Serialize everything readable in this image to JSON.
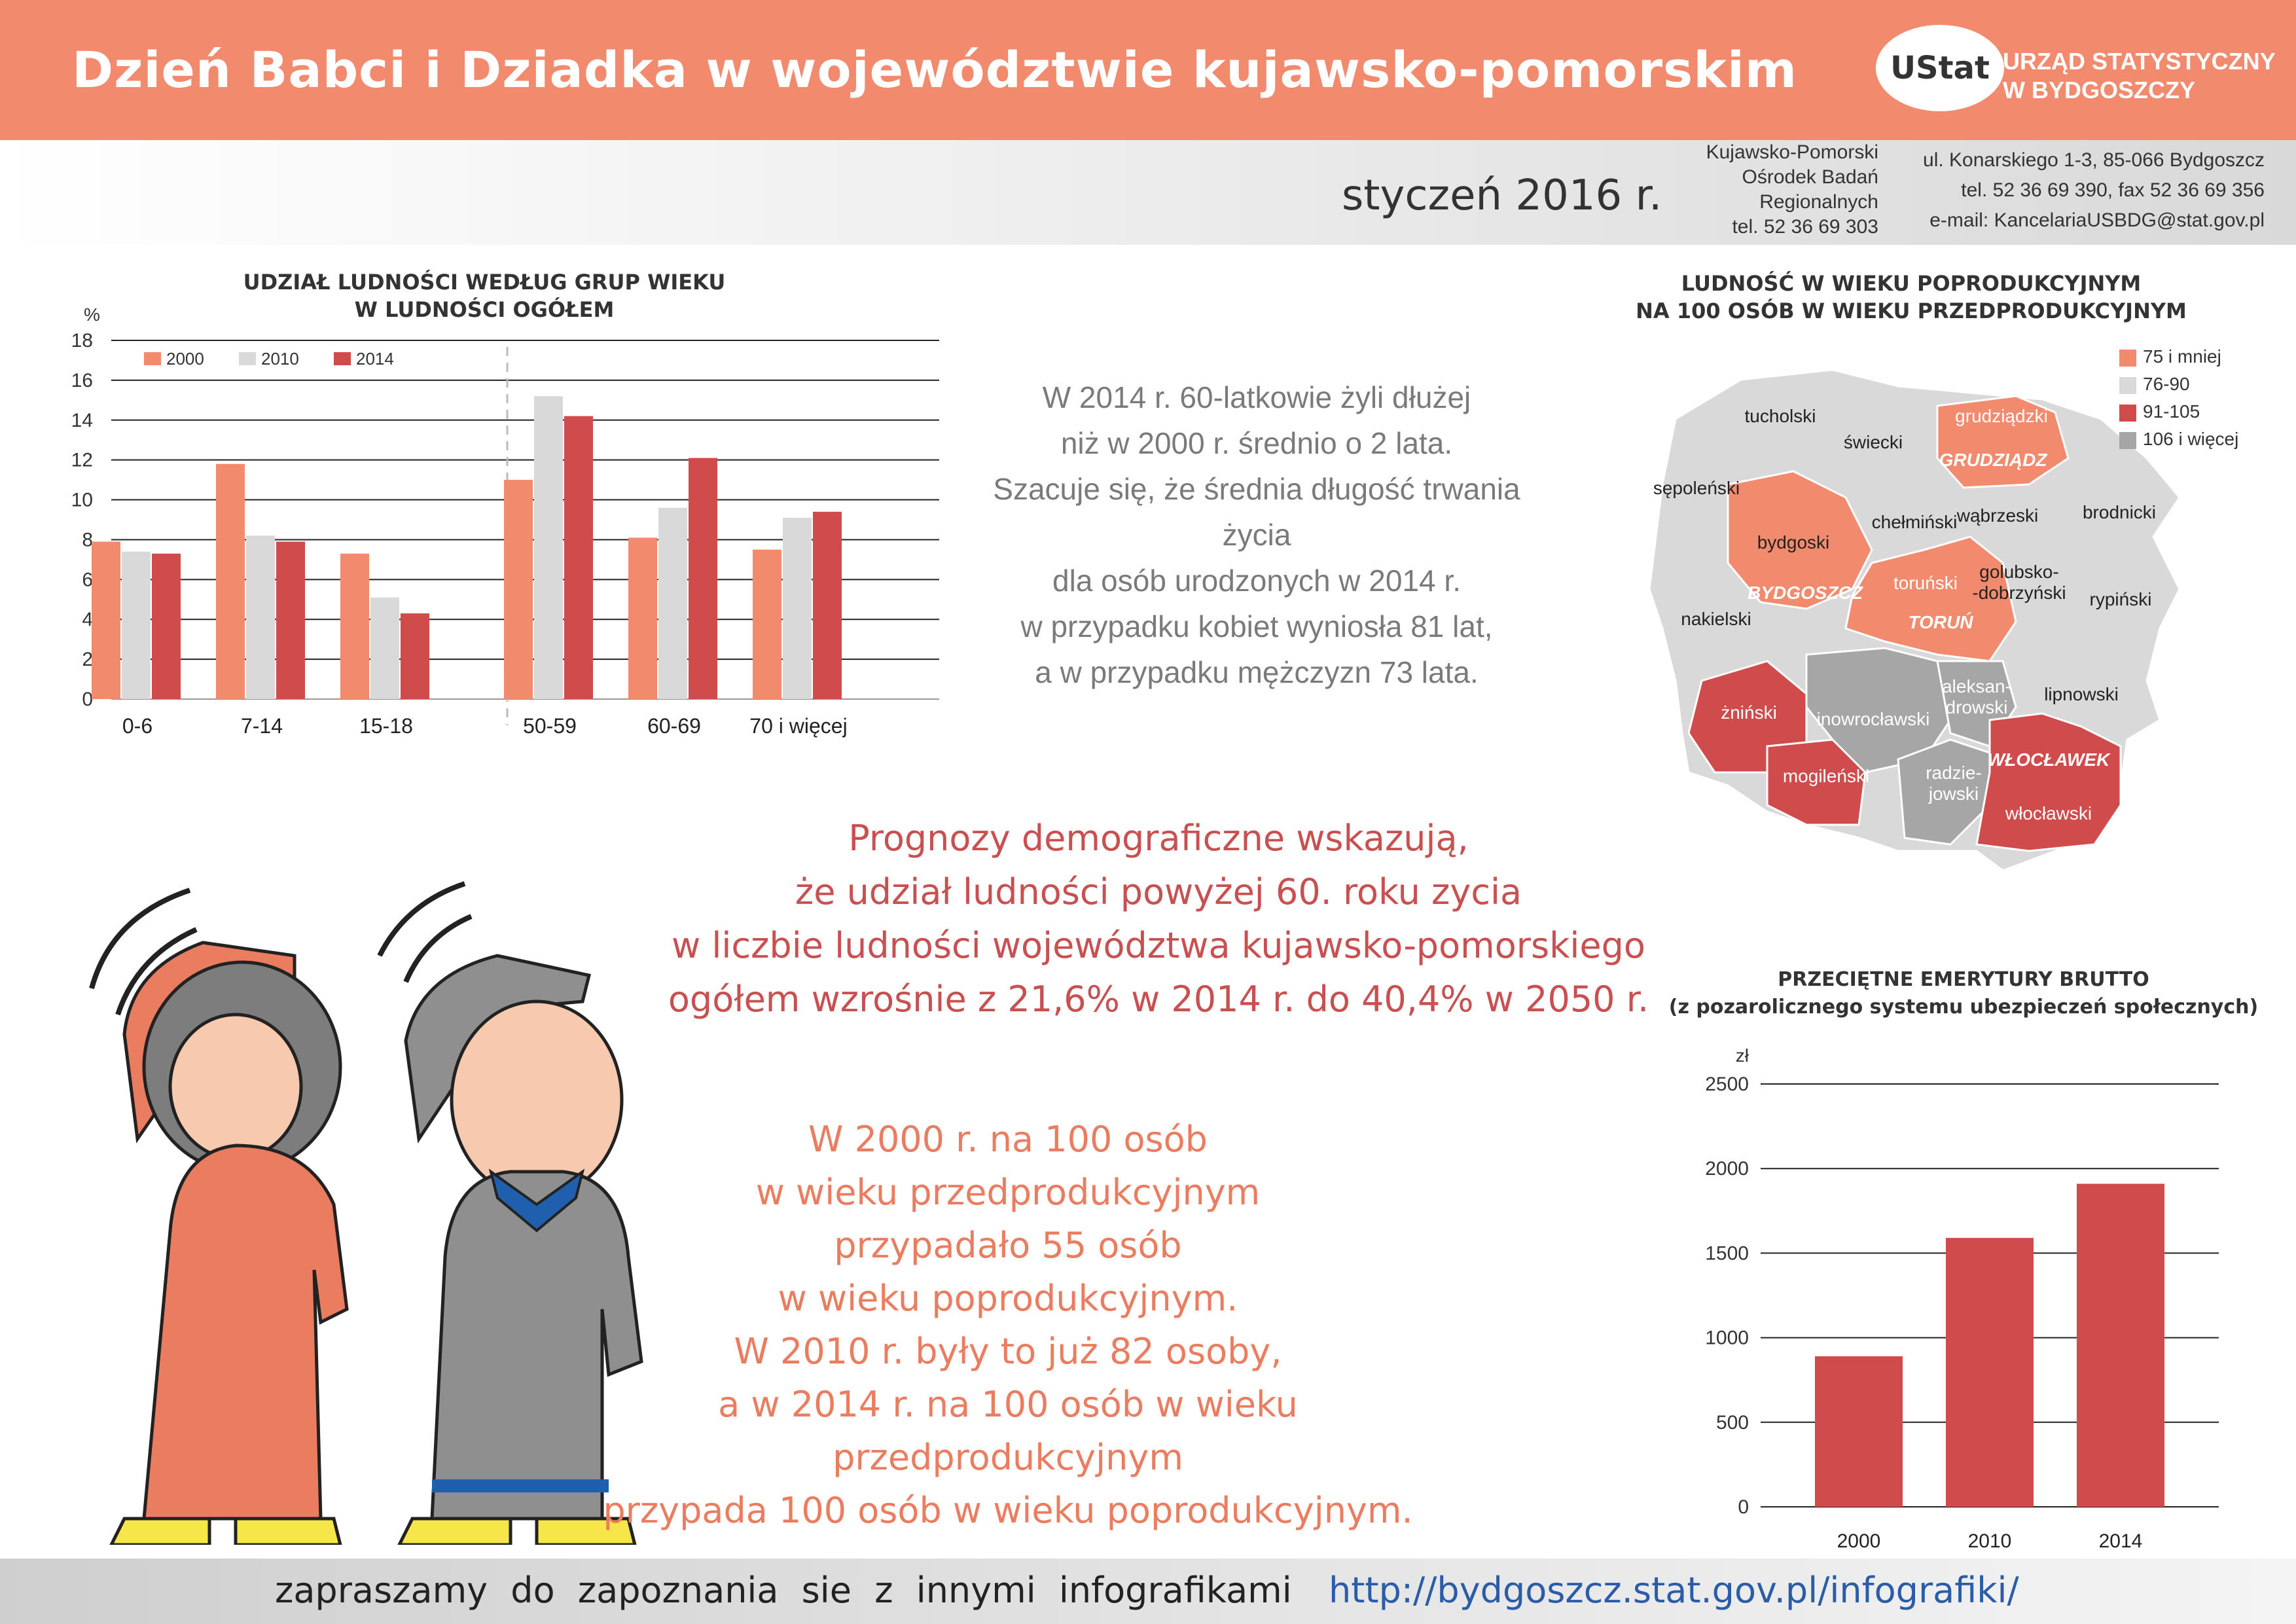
{
  "header": {
    "title": "Dzień Babci i Dziadka w województwie  kujawsko-pomorskim",
    "logo_text": "UStat",
    "office_line1": "URZĄD STATYSTYCZNY",
    "office_line2": "W BYDGOSZCZY"
  },
  "subheader": {
    "date": "styczeń 2016 r.",
    "branch_lines": [
      "Kujawsko-Pomorski",
      "Ośrodek Badań",
      "Regionalnych",
      "tel. 52 36 69 303"
    ],
    "contact_lines": [
      "ul. Konarskiego 1-3, 85-066 Bydgoszcz",
      "tel. 52 36 69 390, fax 52 36 69 356",
      "e-mail: KancelariaUSBDG@stat.gov.pl"
    ]
  },
  "colors": {
    "header_bg": "#f28a6e",
    "s2000": "#f28a6e",
    "s2010": "#d9d9d9",
    "s2014": "#d04b4b",
    "map_75": "#f28a6e",
    "map_76_90": "#d9d9d9",
    "map_91_105": "#d04b4b",
    "map_106": "#a6a6a6"
  },
  "chart_data": [
    {
      "type": "bar",
      "title_lines": [
        "UDZIAŁ LUDNOŚCI WEDŁUG GRUP WIEKU",
        "W LUDNOŚCI OGÓŁEM"
      ],
      "ylabel": "%",
      "ylim": [
        0,
        18
      ],
      "yticks": [
        "0",
        "2",
        "4",
        "6",
        "8",
        "10",
        "12",
        "14",
        "16",
        "18"
      ],
      "categories": [
        "0-6",
        "7-14",
        "15-18",
        "50-59",
        "60-69",
        "70 i więcej"
      ],
      "series": [
        {
          "name": "2000",
          "values": [
            7.9,
            11.8,
            7.3,
            11.0,
            8.1,
            7.5
          ]
        },
        {
          "name": "2010",
          "values": [
            7.4,
            8.2,
            5.1,
            15.2,
            9.6,
            9.1
          ]
        },
        {
          "name": "2014",
          "values": [
            7.3,
            7.9,
            4.3,
            14.2,
            12.1,
            9.4
          ]
        }
      ],
      "grid": true,
      "legend": "top-left"
    },
    {
      "type": "bar",
      "title_lines": [
        "PRZECIĘTNE EMERYTURY BRUTTO",
        "(z pozarolicznego systemu ubezpieczeń społecznych)"
      ],
      "ylabel": "zł",
      "ylim": [
        0,
        2500
      ],
      "yticks": [
        "0",
        "500",
        "1000",
        "1500",
        "2000",
        "2500"
      ],
      "categories": [
        "2000",
        "2010",
        "2014"
      ],
      "values": [
        890,
        1590,
        1910
      ],
      "grid": true
    }
  ],
  "map": {
    "title_lines": [
      "LUDNOŚĆ W WIEKU POPRODUKCYJNYM",
      "NA 100 OSÓB W WIEKU PRZEDPRODUKCYJNYM"
    ],
    "legend": [
      "75 i mniej",
      "76-90",
      "91-105",
      "106 i więcej"
    ],
    "labels": [
      "tucholski",
      "świecki",
      "grudziądzki",
      "GRUDZIĄDZ",
      "sępoleński",
      "bydgoski",
      "chełmiński",
      "wąbrzeski",
      "brodnicki",
      "BYDGOSZCZ",
      "toruński",
      "golubsko-",
      "-dobrzyński",
      "rypiński",
      "nakielski",
      "TORUŃ",
      "aleksan-",
      "drowski",
      "lipnowski",
      "żniński",
      "inowrocławski",
      "WŁOCŁAWEK",
      "mogileński",
      "radzie-",
      "jowski",
      "włocławski"
    ]
  },
  "texts": {
    "life_expectancy": [
      "W 2014 r. 60-latkowie żyli dłużej",
      "niż w 2000 r. średnio o 2 lata.",
      "Szacuje się, że średnia długość trwania życia",
      "dla osób urodzonych w 2014 r.",
      "w przypadku kobiet wyniosła 81 lat,",
      "a w przypadku mężczyzn 73 lata."
    ],
    "forecast": [
      "Prognozy demograficzne wskazują,",
      "że udział ludności powyżej 60. roku zycia",
      "w liczbie ludności województwa kujawsko-pomorskiego",
      "ogółem wzrośnie z 21,6% w 2014 r. do 40,4% w 2050 r."
    ],
    "ratio": [
      "W 2000 r. na 100 osób",
      "w wieku przedprodukcyjnym",
      "przypadało 55 osób",
      "w wieku poprodukcyjnym.",
      "W 2010 r. były to już 82 osoby,",
      "a w 2014 r. na 100 osób w wieku przedprodukcyjnym",
      "przypada 100 osób w wieku poprodukcyjnym."
    ]
  },
  "footer": {
    "text": "zapraszamy do zapoznania sie z innymi infografikami",
    "link": "http://bydgoszcz.stat.gov.pl/infografiki/"
  }
}
